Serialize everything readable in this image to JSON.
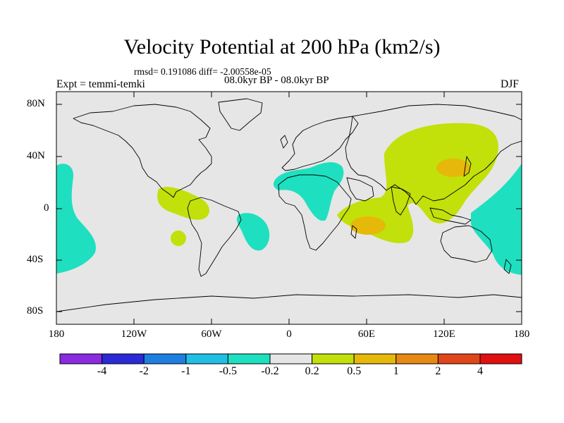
{
  "title": "Velocity Potential at 200 hPa (km2/s)",
  "stats_line": "rmsd= 0.191086 diff= -2.00558e-05",
  "period_line": "08.0kyr BP - 08.0kyr BP",
  "left_label": "Expt = temmi-temki",
  "right_label": "DJF",
  "lat_labels": [
    "80N",
    "40N",
    "0",
    "40S",
    "80S"
  ],
  "lon_labels": [
    "180",
    "120W",
    "60W",
    "0",
    "60E",
    "120E",
    "180"
  ],
  "colorbar": {
    "colors": [
      "#8a2be2",
      "#2a2ad6",
      "#1f7fe0",
      "#1fbfe6",
      "#1ee0c0",
      "#e6e6e6",
      "#c2e00a",
      "#e6b80a",
      "#e68a14",
      "#e0461a",
      "#e01010"
    ],
    "labels": [
      "-4",
      "-2",
      "-1",
      "-0.5",
      "-0.2",
      "0.2",
      "0.5",
      "1",
      "2",
      "4"
    ]
  },
  "map_colors": {
    "background": "#e6e6e6",
    "positive_weak": "#c2e00a",
    "positive_mid": "#e6b80a",
    "negative_weak": "#1ee0c0",
    "land_outline": "#000000"
  }
}
